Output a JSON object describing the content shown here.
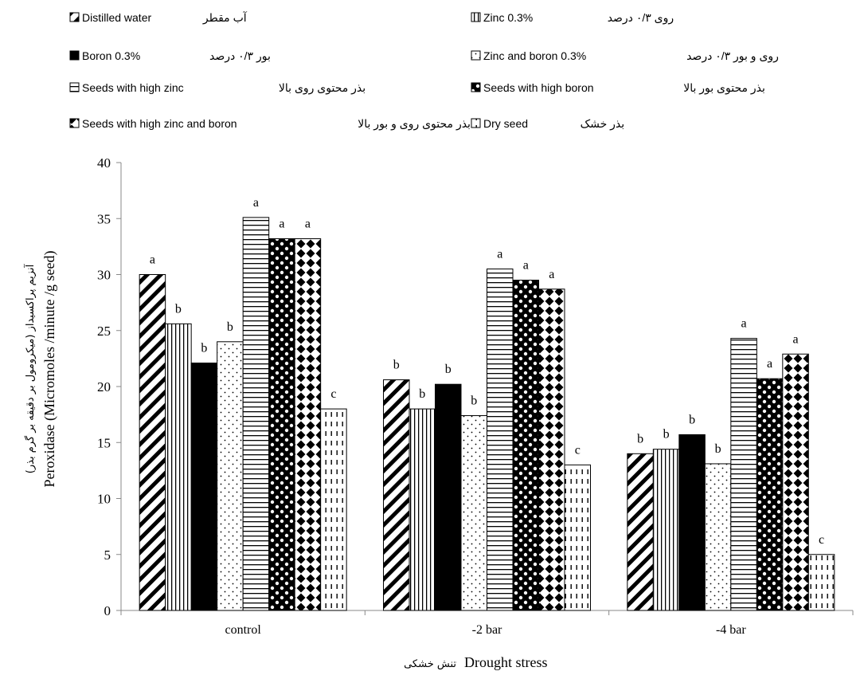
{
  "chart_data": {
    "type": "bar",
    "categories": [
      "control",
      "-2 bar",
      "-4 bar"
    ],
    "series": [
      {
        "name": "آب مقطر Distilled water",
        "pattern": "diagonal",
        "values": [
          30,
          20.6,
          14
        ],
        "letters": [
          "a",
          "b",
          "b"
        ]
      },
      {
        "name": "روی ۰/۳ درصد Zinc 0.3%",
        "pattern": "vertical",
        "values": [
          25.6,
          18,
          14.4
        ],
        "letters": [
          "b",
          "b",
          "b"
        ]
      },
      {
        "name": "بور ۰/۳ درصد Boron 0.3%",
        "pattern": "solid",
        "values": [
          22.1,
          20.2,
          15.7
        ],
        "letters": [
          "b",
          "b",
          "b"
        ]
      },
      {
        "name": "روی و بور ۰/۳ درصد Zinc and boron 0.3%",
        "pattern": "dots",
        "values": [
          24,
          17.4,
          13.1
        ],
        "letters": [
          "b",
          "b",
          "b"
        ]
      },
      {
        "name": "بذر محتوی روی بالا Seeds with high zinc",
        "pattern": "horizontal",
        "values": [
          35.1,
          30.5,
          24.3
        ],
        "letters": [
          "a",
          "a",
          "a"
        ]
      },
      {
        "name": "بذر محتوی بور بالا Seeds with high boron",
        "pattern": "dark-diamond",
        "values": [
          33.2,
          29.5,
          20.7
        ],
        "letters": [
          "a",
          "a",
          "a"
        ]
      },
      {
        "name": "بذر محتوی روی و بور بالا Seeds with high zinc and boron",
        "pattern": "light-diamond",
        "values": [
          33.2,
          28.7,
          22.9
        ],
        "letters": [
          "a",
          "a",
          "a"
        ]
      },
      {
        "name": "بذر خشک Dry seed",
        "pattern": "dashed-vertical",
        "values": [
          18,
          13,
          5
        ],
        "letters": [
          "c",
          "c",
          "c"
        ]
      }
    ],
    "ylabel_fa": "آنزیم پراکسیداز (میکرومول بر دقیقه بر گرم بذر)",
    "ylabel": "Peroxidase (Micromoles /minute /g seed)",
    "xlabel_fa": "تنش خشکی",
    "xlabel": "Drought stress",
    "ylim": [
      0,
      40
    ],
    "yticks": [
      0,
      5,
      10,
      15,
      20,
      25,
      30,
      35,
      40
    ],
    "grid": false,
    "legend_position": "top"
  },
  "legend": [
    {
      "en": "Distilled water",
      "fa": "آب مقطر"
    },
    {
      "en": "Zinc 0.3%",
      "fa": "روی ۰/۳ درصد"
    },
    {
      "en": "Boron 0.3%",
      "fa": "بور ۰/۳ درصد"
    },
    {
      "en": "Zinc and boron 0.3%",
      "fa": "روی و بور ۰/۳ درصد"
    },
    {
      "en": "Seeds  with high zinc",
      "fa": "بذر محتوی روی بالا"
    },
    {
      "en": "Seeds with high boron",
      "fa": "بذر محتوی بور بالا"
    },
    {
      "en": "Seeds with  high zinc and boron",
      "fa": "بذر محتوی روی و بور بالا"
    },
    {
      "en": "Dry seed",
      "fa": "بذر خشک"
    }
  ]
}
